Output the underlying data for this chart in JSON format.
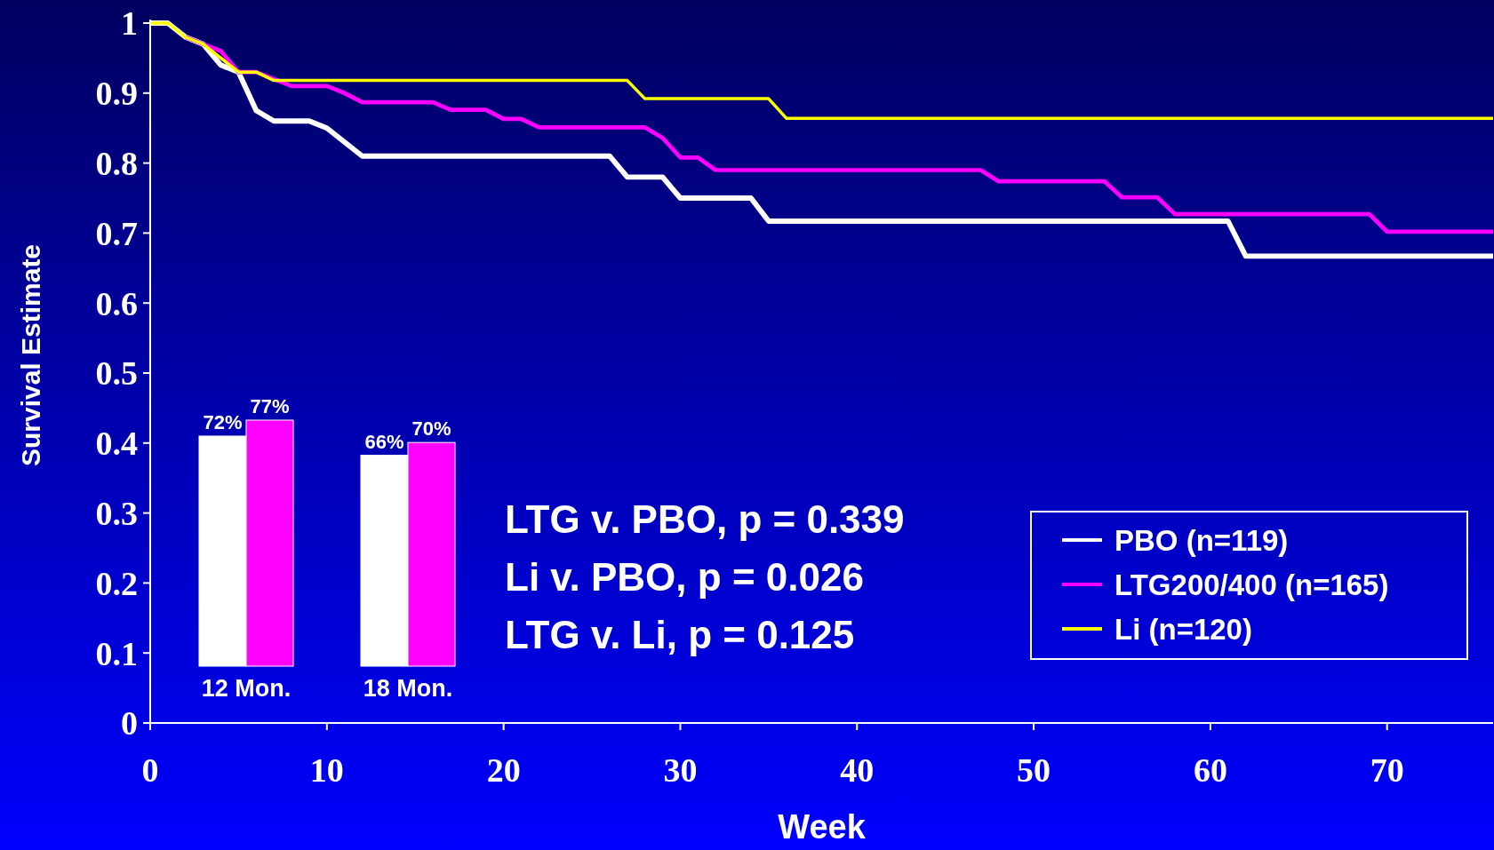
{
  "chart_data": [
    {
      "type": "line",
      "xlabel": "Week",
      "ylabel": "Survival Estimate",
      "xlim": [
        0,
        76
      ],
      "ylim": [
        0,
        1
      ],
      "xticks": [
        0,
        10,
        20,
        30,
        40,
        50,
        60,
        70
      ],
      "yticks": [
        0,
        0.1,
        0.2,
        0.3,
        0.4,
        0.5,
        0.6,
        0.7,
        0.8,
        0.9,
        1
      ],
      "legend": "bottom right",
      "marker": "none",
      "line_style": "solid",
      "annotations": [
        "LTG v. PBO, p = 0.339",
        "Li v. PBO, p = 0.026",
        "LTG v. Li, p = 0.125"
      ],
      "series": [
        {
          "name": "PBO (n=119)",
          "color": "#ffffff",
          "x": [
            0,
            1,
            2,
            3,
            4,
            5,
            6,
            7,
            9,
            10,
            11,
            12,
            26,
            27,
            29,
            30,
            34,
            35,
            61,
            62,
            76
          ],
          "values": [
            1,
            1,
            0.98,
            0.97,
            0.94,
            0.93,
            0.875,
            0.86,
            0.86,
            0.85,
            0.83,
            0.81,
            0.81,
            0.78,
            0.78,
            0.75,
            0.75,
            0.717,
            0.717,
            0.667,
            0.667
          ]
        },
        {
          "name": "LTG200/400 (n=165)",
          "color": "#ff00ff",
          "x": [
            2,
            3,
            4,
            5,
            6,
            7,
            8,
            10,
            11,
            12,
            16,
            17,
            19,
            20,
            21,
            22,
            28,
            29,
            30,
            31,
            32,
            47,
            48,
            54,
            55,
            57,
            58,
            69,
            70,
            76
          ],
          "values": [
            0.98,
            0.97,
            0.96,
            0.93,
            0.93,
            0.92,
            0.91,
            0.91,
            0.9,
            0.887,
            0.887,
            0.876,
            0.876,
            0.863,
            0.863,
            0.851,
            0.851,
            0.836,
            0.808,
            0.808,
            0.79,
            0.79,
            0.774,
            0.774,
            0.751,
            0.751,
            0.727,
            0.727,
            0.702,
            0.702
          ]
        },
        {
          "name": "Li (n=120)",
          "color": "#ffff00",
          "x": [
            0,
            1,
            2,
            3,
            4,
            5,
            6,
            7,
            27,
            28,
            35,
            36,
            76
          ],
          "values": [
            1,
            1,
            0.98,
            0.97,
            0.95,
            0.93,
            0.93,
            0.918,
            0.918,
            0.892,
            0.892,
            0.864,
            0.864
          ]
        }
      ]
    },
    {
      "type": "bar",
      "relative": false,
      "categories": [
        "12 Mon.",
        "18 Mon."
      ],
      "series": [
        {
          "color": "#ffffff",
          "values": [
            72,
            66
          ],
          "value_labels": [
            "72%",
            "66%"
          ]
        },
        {
          "color": "#ff00ff",
          "values": [
            77,
            70
          ],
          "value_labels": [
            "77%",
            "70%"
          ]
        }
      ]
    }
  ]
}
